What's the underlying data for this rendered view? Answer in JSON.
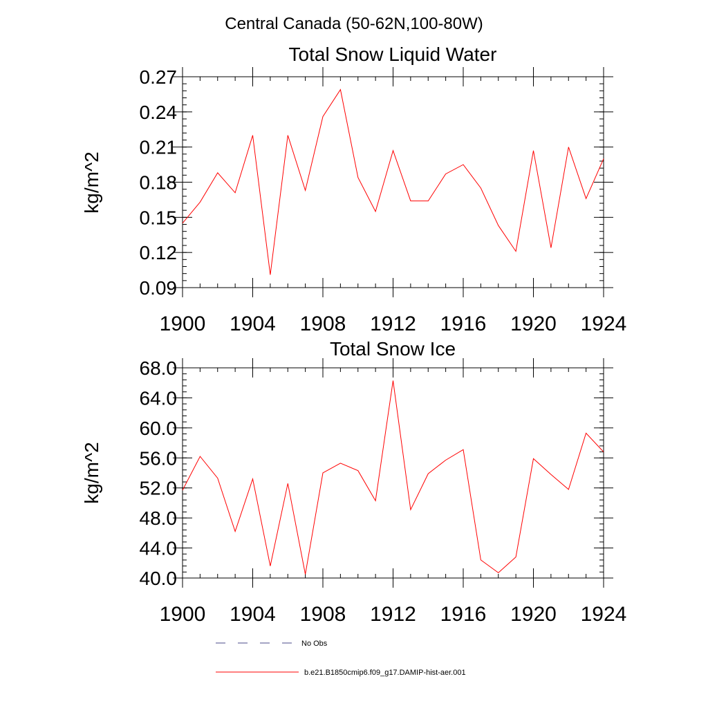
{
  "figure": {
    "suptitle": "Central Canada (50-62N,100-80W)"
  },
  "legend": {
    "entries": [
      {
        "label": "No Obs",
        "style": "dashed",
        "color": "#4a4a8a"
      },
      {
        "label": "b.e21.B1850cmip6.f09_g17.DAMIP-hist-aer.001",
        "style": "solid",
        "color": "#ff0000"
      }
    ]
  },
  "chart_data": [
    {
      "type": "line",
      "title": "Total Snow Liquid Water",
      "xlabel": "",
      "ylabel": "kg/m^2",
      "xlim": [
        1900,
        1924
      ],
      "ylim": [
        0.09,
        0.27
      ],
      "xticks": [
        "1900",
        "1904",
        "1908",
        "1912",
        "1916",
        "1920",
        "1924"
      ],
      "yticks": [
        "0.09",
        "0.12",
        "0.15",
        "0.18",
        "0.21",
        "0.24",
        "0.27"
      ],
      "grid": false,
      "series": [
        {
          "name": "b.e21.B1850cmip6.f09_g17.DAMIP-hist-aer.001",
          "color": "#ff0000",
          "x": [
            1900,
            1901,
            1902,
            1903,
            1904,
            1905,
            1906,
            1907,
            1908,
            1909,
            1910,
            1911,
            1912,
            1913,
            1914,
            1915,
            1916,
            1917,
            1918,
            1919,
            1920,
            1921,
            1922,
            1923,
            1924
          ],
          "y": [
            0.145,
            0.163,
            0.188,
            0.171,
            0.22,
            0.101,
            0.22,
            0.173,
            0.236,
            0.259,
            0.184,
            0.155,
            0.207,
            0.164,
            0.164,
            0.187,
            0.195,
            0.175,
            0.143,
            0.121,
            0.207,
            0.124,
            0.21,
            0.166,
            0.2
          ]
        }
      ]
    },
    {
      "type": "line",
      "title": "Total Snow Ice",
      "xlabel": "",
      "ylabel": "kg/m^2",
      "xlim": [
        1900,
        1924
      ],
      "ylim": [
        40.0,
        68.0
      ],
      "xticks": [
        "1900",
        "1904",
        "1908",
        "1912",
        "1916",
        "1920",
        "1924"
      ],
      "yticks": [
        "40.0",
        "44.0",
        "48.0",
        "52.0",
        "56.0",
        "60.0",
        "64.0",
        "68.0"
      ],
      "grid": false,
      "series": [
        {
          "name": "b.e21.B1850cmip6.f09_g17.DAMIP-hist-aer.001",
          "color": "#ff0000",
          "x": [
            1900,
            1901,
            1902,
            1903,
            1904,
            1905,
            1906,
            1907,
            1908,
            1909,
            1910,
            1911,
            1912,
            1913,
            1914,
            1915,
            1916,
            1917,
            1918,
            1919,
            1920,
            1921,
            1922,
            1923,
            1924
          ],
          "y": [
            51.7,
            56.2,
            53.3,
            46.2,
            53.2,
            41.6,
            52.6,
            40.5,
            54.0,
            55.3,
            54.3,
            50.3,
            66.3,
            49.1,
            53.9,
            55.7,
            57.1,
            42.4,
            40.7,
            42.8,
            55.9,
            53.8,
            51.8,
            59.3,
            56.8
          ]
        }
      ]
    }
  ]
}
